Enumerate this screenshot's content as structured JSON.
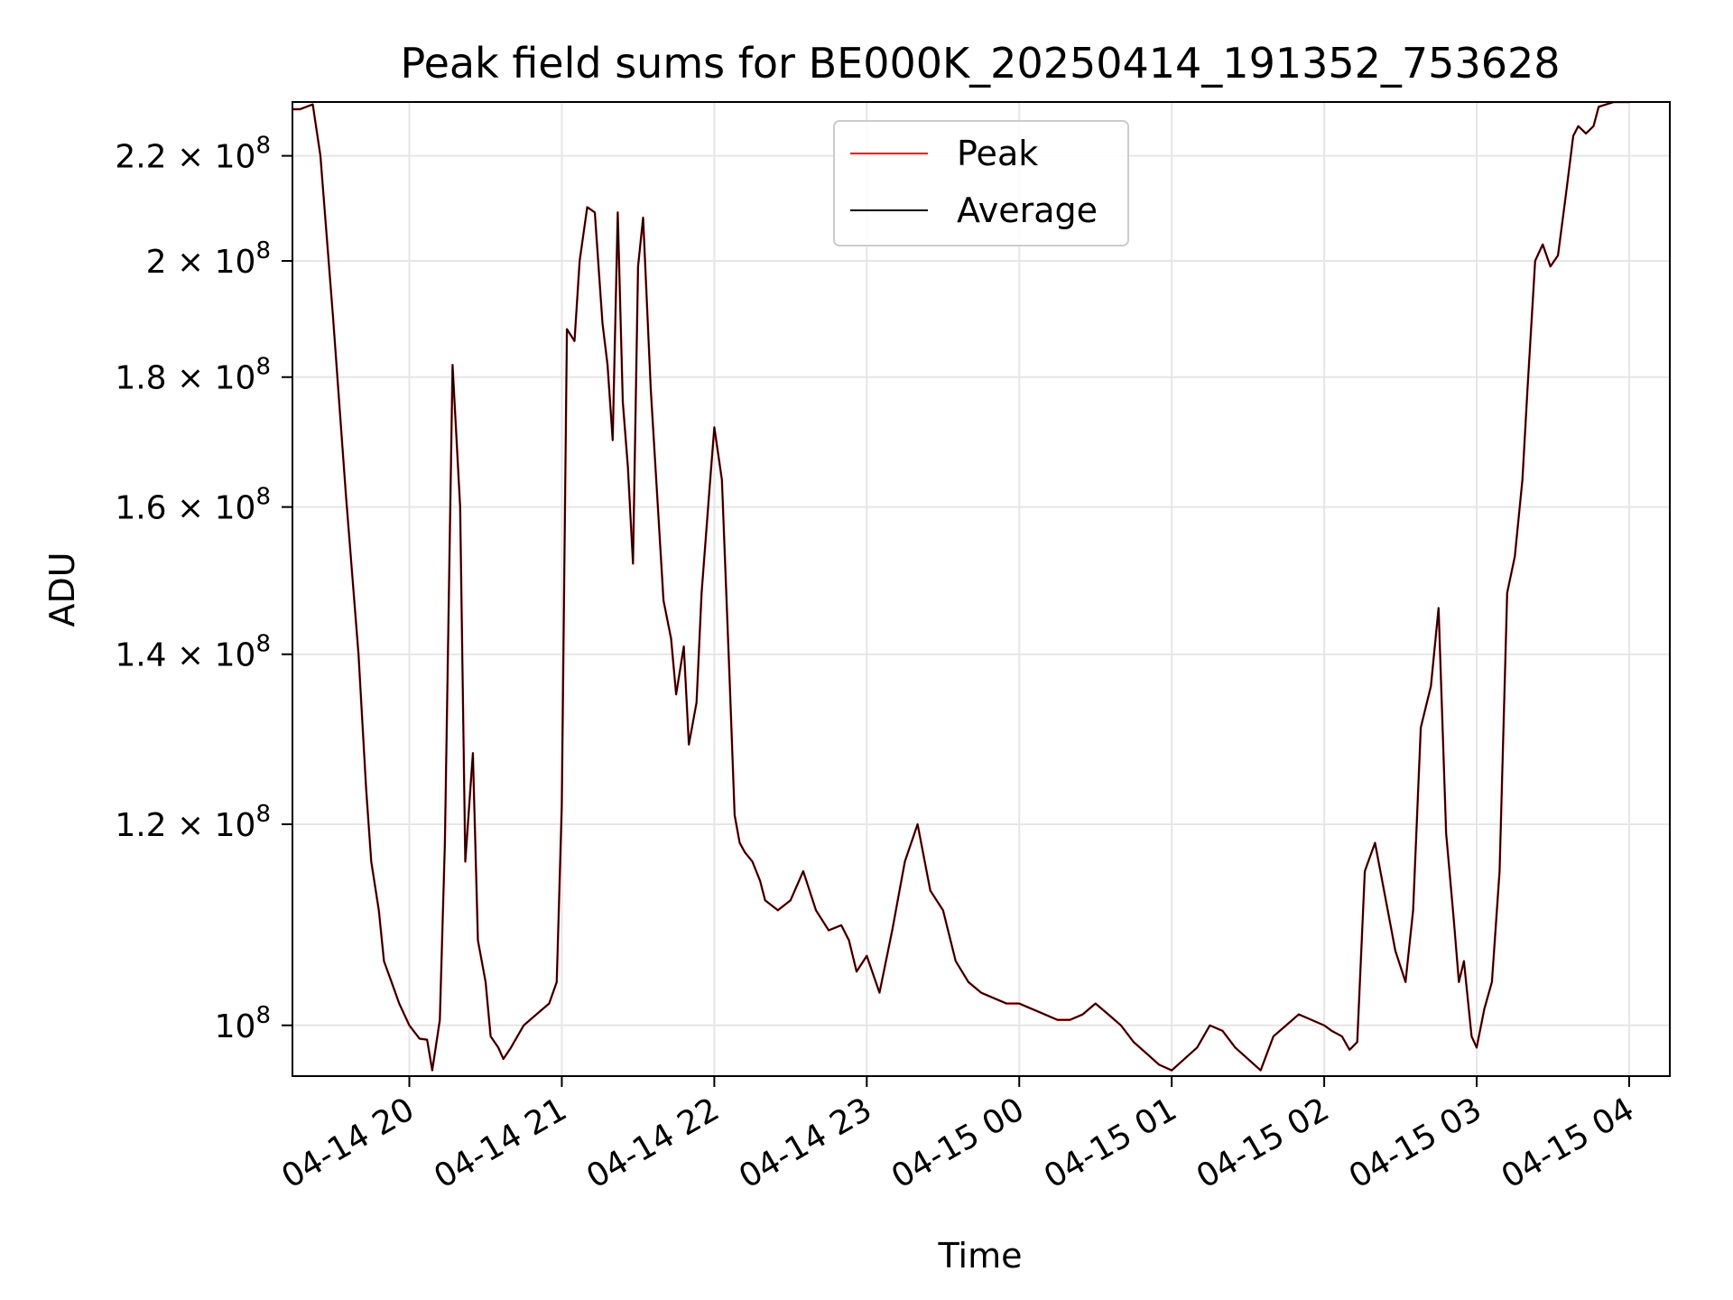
{
  "chart_data": {
    "type": "line",
    "title": "Peak field sums for BE000K_20250414_191352_753628",
    "xlabel": "Time",
    "ylabel": "ADU",
    "yscale": "log",
    "xlim": [
      "2025-04-14 19:14",
      "2025-04-15 04:16"
    ],
    "ylim": [
      95500000,
      231000000
    ],
    "grid": true,
    "legend_position": "upper-center",
    "x_ticks": [
      {
        "time": "2025-04-14 20:00",
        "label": "04-14 20"
      },
      {
        "time": "2025-04-14 21:00",
        "label": "04-14 21"
      },
      {
        "time": "2025-04-14 22:00",
        "label": "04-14 22"
      },
      {
        "time": "2025-04-14 23:00",
        "label": "04-14 23"
      },
      {
        "time": "2025-04-15 00:00",
        "label": "04-15 00"
      },
      {
        "time": "2025-04-15 01:00",
        "label": "04-15 01"
      },
      {
        "time": "2025-04-15 02:00",
        "label": "04-15 02"
      },
      {
        "time": "2025-04-15 03:00",
        "label": "04-15 03"
      },
      {
        "time": "2025-04-15 04:00",
        "label": "04-15 04"
      }
    ],
    "y_ticks": [
      {
        "value": 100000000,
        "mantissa": "",
        "exponent": "8"
      },
      {
        "value": 120000000,
        "mantissa": "1.2",
        "exponent": "8"
      },
      {
        "value": 140000000,
        "mantissa": "1.4",
        "exponent": "8"
      },
      {
        "value": 160000000,
        "mantissa": "1.6",
        "exponent": "8"
      },
      {
        "value": 180000000,
        "mantissa": "1.8",
        "exponent": "8"
      },
      {
        "value": 200000000,
        "mantissa": "2",
        "exponent": "8"
      },
      {
        "value": 220000000,
        "mantissa": "2.2",
        "exponent": "8"
      }
    ],
    "times": [
      "2025-04-14 19:14",
      "2025-04-14 19:17",
      "2025-04-14 19:22",
      "2025-04-14 19:25",
      "2025-04-14 19:30",
      "2025-04-14 19:35",
      "2025-04-14 19:40",
      "2025-04-14 19:43",
      "2025-04-14 19:45",
      "2025-04-14 19:48",
      "2025-04-14 19:50",
      "2025-04-14 19:53",
      "2025-04-14 19:56",
      "2025-04-14 20:00",
      "2025-04-14 20:04",
      "2025-04-14 20:07",
      "2025-04-14 20:09",
      "2025-04-14 20:12",
      "2025-04-14 20:14",
      "2025-04-14 20:17",
      "2025-04-14 20:20",
      "2025-04-14 20:22",
      "2025-04-14 20:25",
      "2025-04-14 20:27",
      "2025-04-14 20:30",
      "2025-04-14 20:32",
      "2025-04-14 20:35",
      "2025-04-14 20:37",
      "2025-04-14 20:40",
      "2025-04-14 20:45",
      "2025-04-14 20:50",
      "2025-04-14 20:55",
      "2025-04-14 20:58",
      "2025-04-14 21:00",
      "2025-04-14 21:02",
      "2025-04-14 21:05",
      "2025-04-14 21:07",
      "2025-04-14 21:10",
      "2025-04-14 21:13",
      "2025-04-14 21:16",
      "2025-04-14 21:18",
      "2025-04-14 21:20",
      "2025-04-14 21:22",
      "2025-04-14 21:24",
      "2025-04-14 21:26",
      "2025-04-14 21:28",
      "2025-04-14 21:30",
      "2025-04-14 21:32",
      "2025-04-14 21:35",
      "2025-04-14 21:37",
      "2025-04-14 21:40",
      "2025-04-14 21:43",
      "2025-04-14 21:45",
      "2025-04-14 21:48",
      "2025-04-14 21:50",
      "2025-04-14 21:53",
      "2025-04-14 21:55",
      "2025-04-14 21:58",
      "2025-04-14 22:00",
      "2025-04-14 22:03",
      "2025-04-14 22:06",
      "2025-04-14 22:08",
      "2025-04-14 22:10",
      "2025-04-14 22:12",
      "2025-04-14 22:15",
      "2025-04-14 22:18",
      "2025-04-14 22:20",
      "2025-04-14 22:25",
      "2025-04-14 22:30",
      "2025-04-14 22:35",
      "2025-04-14 22:40",
      "2025-04-14 22:45",
      "2025-04-14 22:50",
      "2025-04-14 22:53",
      "2025-04-14 22:56",
      "2025-04-14 23:00",
      "2025-04-14 23:05",
      "2025-04-14 23:10",
      "2025-04-14 23:15",
      "2025-04-14 23:20",
      "2025-04-14 23:25",
      "2025-04-14 23:30",
      "2025-04-14 23:35",
      "2025-04-14 23:40",
      "2025-04-14 23:45",
      "2025-04-14 23:50",
      "2025-04-14 23:55",
      "2025-04-15 00:00",
      "2025-04-15 00:05",
      "2025-04-15 00:10",
      "2025-04-15 00:15",
      "2025-04-15 00:20",
      "2025-04-15 00:25",
      "2025-04-15 00:30",
      "2025-04-15 00:35",
      "2025-04-15 00:40",
      "2025-04-15 00:45",
      "2025-04-15 00:50",
      "2025-04-15 00:55",
      "2025-04-15 01:00",
      "2025-04-15 01:05",
      "2025-04-15 01:10",
      "2025-04-15 01:15",
      "2025-04-15 01:20",
      "2025-04-15 01:25",
      "2025-04-15 01:30",
      "2025-04-15 01:35",
      "2025-04-15 01:40",
      "2025-04-15 01:45",
      "2025-04-15 01:50",
      "2025-04-15 01:55",
      "2025-04-15 02:00",
      "2025-04-15 02:03",
      "2025-04-15 02:07",
      "2025-04-15 02:10",
      "2025-04-15 02:13",
      "2025-04-15 02:16",
      "2025-04-15 02:20",
      "2025-04-15 02:25",
      "2025-04-15 02:28",
      "2025-04-15 02:32",
      "2025-04-15 02:35",
      "2025-04-15 02:38",
      "2025-04-15 02:42",
      "2025-04-15 02:45",
      "2025-04-15 02:48",
      "2025-04-15 02:51",
      "2025-04-15 02:53",
      "2025-04-15 02:55",
      "2025-04-15 02:58",
      "2025-04-15 03:00",
      "2025-04-15 03:03",
      "2025-04-15 03:06",
      "2025-04-15 03:09",
      "2025-04-15 03:12",
      "2025-04-15 03:15",
      "2025-04-15 03:18",
      "2025-04-15 03:20",
      "2025-04-15 03:23",
      "2025-04-15 03:26",
      "2025-04-15 03:29",
      "2025-04-15 03:32",
      "2025-04-15 03:35",
      "2025-04-15 03:38",
      "2025-04-15 03:40",
      "2025-04-15 03:43",
      "2025-04-15 03:46",
      "2025-04-15 03:48",
      "2025-04-15 03:51",
      "2025-04-15 03:54",
      "2025-04-15 03:57",
      "2025-04-15 04:00"
    ],
    "series": [
      {
        "name": "Peak",
        "color": "#ff0000",
        "values": [
          229500000,
          229500000,
          230500000,
          220000000,
          190000000,
          162000000,
          140000000,
          124000000,
          116000000,
          111000000,
          106000000,
          104000000,
          102000000,
          100000000,
          98800000,
          98700000,
          96000000,
          100500000,
          118000000,
          182000000,
          160000000,
          116000000,
          128000000,
          108000000,
          104000000,
          99000000,
          98000000,
          97000000,
          98000000,
          100000000,
          101000000,
          102000000,
          104000000,
          122000000,
          188000000,
          186000000,
          200000000,
          210000000,
          209000000,
          189000000,
          182000000,
          170000000,
          209000000,
          176000000,
          166000000,
          152000000,
          199000000,
          208000000,
          178000000,
          165000000,
          147000000,
          142000000,
          135000000,
          141000000,
          129000000,
          134000000,
          148000000,
          162000000,
          172000000,
          164000000,
          137000000,
          121000000,
          118000000,
          117000000,
          116000000,
          114000000,
          112000000,
          111000000,
          112000000,
          115000000,
          111000000,
          109000000,
          109500000,
          108000000,
          105000000,
          106500000,
          103000000,
          109000000,
          116000000,
          120000000,
          113000000,
          111000000,
          106000000,
          104000000,
          103000000,
          102500000,
          102000000,
          102000000,
          101500000,
          101000000,
          100500000,
          100500000,
          101000000,
          102000000,
          101000000,
          100000000,
          98500000,
          97500000,
          96500000,
          96000000,
          97000000,
          98000000,
          100000000,
          99500000,
          98000000,
          97000000,
          96000000,
          99000000,
          100000000,
          101000000,
          100500000,
          100000000,
          99500000,
          99000000,
          97800000,
          98500000,
          115000000,
          118000000,
          111000000,
          107000000,
          104000000,
          111000000,
          131000000,
          136000000,
          146000000,
          119000000,
          110000000,
          104000000,
          106000000,
          99000000,
          98000000,
          101500000,
          104000000,
          115000000,
          148000000,
          153000000,
          164000000,
          178000000,
          200000000,
          203000000,
          199000000,
          201000000,
          212000000,
          224000000,
          226000000,
          224500000,
          226000000,
          230000000,
          230500000,
          231000000,
          231000000,
          231000000
        ]
      },
      {
        "name": "Average",
        "color": "#000000",
        "values": [
          229500000,
          229500000,
          230500000,
          220000000,
          190000000,
          162000000,
          140000000,
          124000000,
          116000000,
          111000000,
          106000000,
          104000000,
          102000000,
          100000000,
          98800000,
          98700000,
          96000000,
          100500000,
          118000000,
          182000000,
          160000000,
          116000000,
          128000000,
          108000000,
          104000000,
          99000000,
          98000000,
          97000000,
          98000000,
          100000000,
          101000000,
          102000000,
          104000000,
          122000000,
          188000000,
          186000000,
          200000000,
          210000000,
          209000000,
          189000000,
          182000000,
          170000000,
          209000000,
          176000000,
          166000000,
          152000000,
          199000000,
          208000000,
          178000000,
          165000000,
          147000000,
          142000000,
          135000000,
          141000000,
          129000000,
          134000000,
          148000000,
          162000000,
          172000000,
          164000000,
          137000000,
          121000000,
          118000000,
          117000000,
          116000000,
          114000000,
          112000000,
          111000000,
          112000000,
          115000000,
          111000000,
          109000000,
          109500000,
          108000000,
          105000000,
          106500000,
          103000000,
          109000000,
          116000000,
          120000000,
          113000000,
          111000000,
          106000000,
          104000000,
          103000000,
          102500000,
          102000000,
          102000000,
          101500000,
          101000000,
          100500000,
          100500000,
          101000000,
          102000000,
          101000000,
          100000000,
          98500000,
          97500000,
          96500000,
          96000000,
          97000000,
          98000000,
          100000000,
          99500000,
          98000000,
          97000000,
          96000000,
          99000000,
          100000000,
          101000000,
          100500000,
          100000000,
          99500000,
          99000000,
          97800000,
          98500000,
          115000000,
          118000000,
          111000000,
          107000000,
          104000000,
          111000000,
          131000000,
          136000000,
          146000000,
          119000000,
          110000000,
          104000000,
          106000000,
          99000000,
          98000000,
          101500000,
          104000000,
          115000000,
          148000000,
          153000000,
          164000000,
          178000000,
          200000000,
          203000000,
          199000000,
          201000000,
          212000000,
          224000000,
          226000000,
          224500000,
          226000000,
          230000000,
          230500000,
          231000000,
          231000000,
          231000000
        ]
      }
    ]
  }
}
